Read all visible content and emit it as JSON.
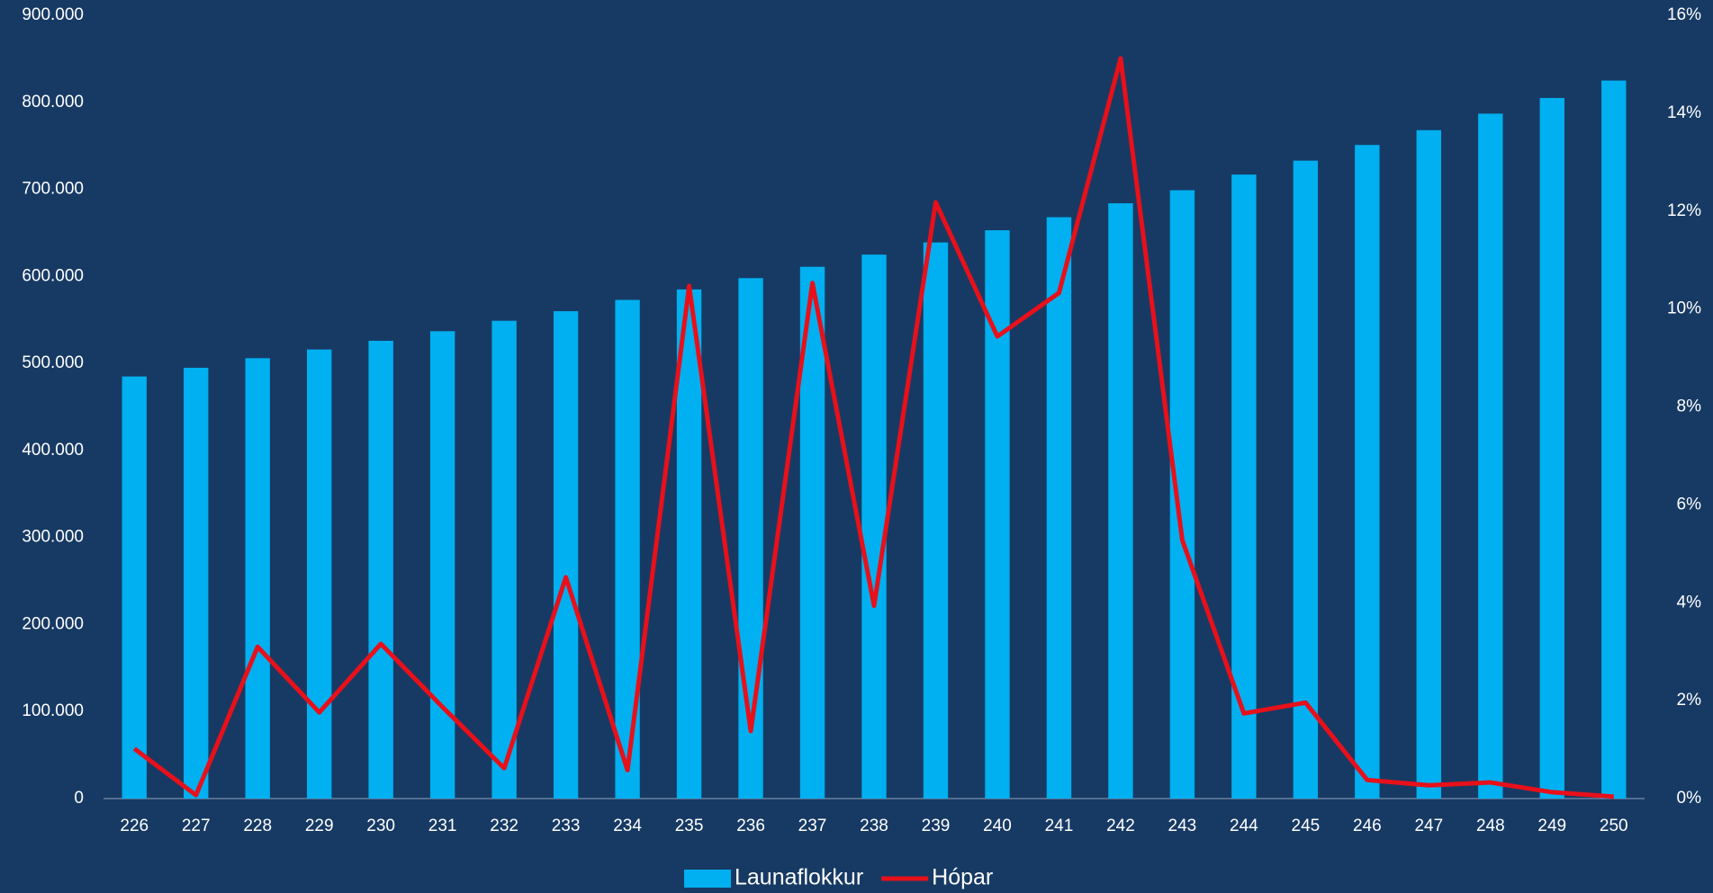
{
  "chart_data": {
    "type": "bar_line",
    "categories": [
      "226",
      "227",
      "228",
      "229",
      "230",
      "231",
      "232",
      "233",
      "234",
      "235",
      "236",
      "237",
      "238",
      "239",
      "240",
      "241",
      "242",
      "243",
      "244",
      "245",
      "246",
      "247",
      "248",
      "249",
      "250"
    ],
    "series": [
      {
        "name": "Launaflokkur",
        "type": "bar",
        "color": "#00b0f0",
        "values": [
          485000,
          495000,
          506000,
          516000,
          526000,
          537000,
          549000,
          560000,
          573000,
          585000,
          598000,
          611000,
          625000,
          639000,
          653000,
          668000,
          684000,
          699000,
          717000,
          733000,
          751000,
          768000,
          787000,
          805000,
          825000
        ]
      },
      {
        "name": "Hópar",
        "type": "line",
        "axis": "y2",
        "color": "#e8101a",
        "values": [
          1.02,
          0.07,
          3.1,
          1.76,
          3.16,
          1.87,
          0.62,
          4.52,
          0.58,
          10.47,
          1.38,
          10.53,
          3.94,
          12.18,
          9.44,
          10.33,
          15.12,
          5.28,
          1.74,
          1.96,
          0.38,
          0.27,
          0.33,
          0.13,
          0.04
        ]
      }
    ],
    "ylim": [
      0,
      900000
    ],
    "yticks": [
      0,
      {
        "value": 100000,
        "label": "100.000"
      },
      {
        "value": 200000,
        "label": "200.000"
      },
      {
        "value": 300000,
        "label": "300.000"
      },
      {
        "value": 400000,
        "label": "400.000"
      },
      {
        "value": 500000,
        "label": "500.000"
      },
      {
        "value": 600000,
        "label": "600.000"
      },
      {
        "value": 700000,
        "label": "700.000"
      },
      {
        "value": 800000,
        "label": "800.000"
      },
      {
        "value": 900000,
        "label": "900.000"
      }
    ],
    "y2lim": [
      0,
      16
    ],
    "y2ticks": [
      {
        "value": 0,
        "label": "0%"
      },
      {
        "value": 2,
        "label": "2%"
      },
      {
        "value": 4,
        "label": "4%"
      },
      {
        "value": 6,
        "label": "6%"
      },
      {
        "value": 8,
        "label": "8%"
      },
      {
        "value": 10,
        "label": "10%"
      },
      {
        "value": 12,
        "label": "12%"
      },
      {
        "value": 14,
        "label": "14%"
      },
      {
        "value": 16,
        "label": "16%"
      }
    ],
    "legend": "bottom",
    "grid": false
  }
}
